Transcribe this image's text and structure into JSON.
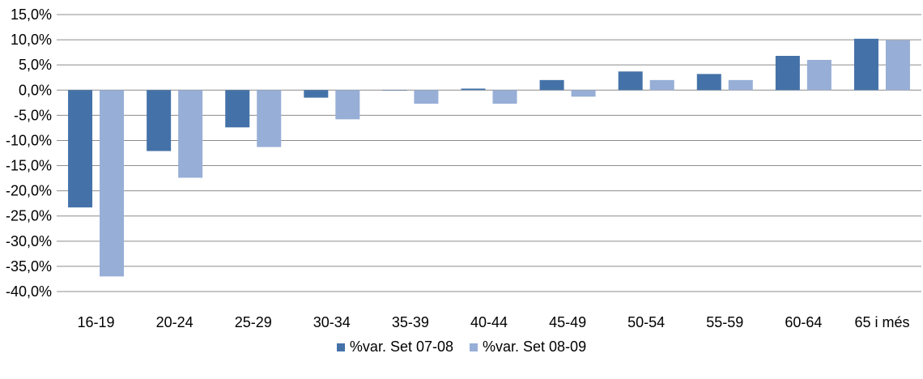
{
  "chart_data": {
    "type": "bar",
    "categories": [
      "16-19",
      "20-24",
      "25-29",
      "30-34",
      "35-39",
      "40-44",
      "45-49",
      "50-54",
      "55-59",
      "60-64",
      "65 i més"
    ],
    "series": [
      {
        "name": "%var. Set 07-08",
        "color": "#4472a8",
        "values": [
          -23.3,
          -12.1,
          -7.4,
          -1.5,
          0.0,
          0.3,
          2.0,
          3.7,
          3.2,
          6.8,
          10.2
        ]
      },
      {
        "name": "%var. Set 08-09",
        "color": "#97aed6",
        "values": [
          -37.0,
          -17.4,
          -11.3,
          -5.8,
          -2.7,
          -2.7,
          -1.3,
          2.0,
          2.0,
          6.0,
          9.9
        ]
      }
    ],
    "ylim": [
      -40,
      15
    ],
    "yticks": [
      15,
      10,
      5,
      0,
      -5,
      -10,
      -15,
      -20,
      -25,
      -30,
      -35,
      -40
    ],
    "ytick_labels": [
      "15,0%",
      "10,0%",
      "5,0%",
      "0,0%",
      "-5,0%",
      "-10,0%",
      "-15,0%",
      "-20,0%",
      "-25,0%",
      "-30,0%",
      "-35,0%",
      "-40,0%"
    ],
    "grid": true,
    "legend_position": "bottom"
  }
}
